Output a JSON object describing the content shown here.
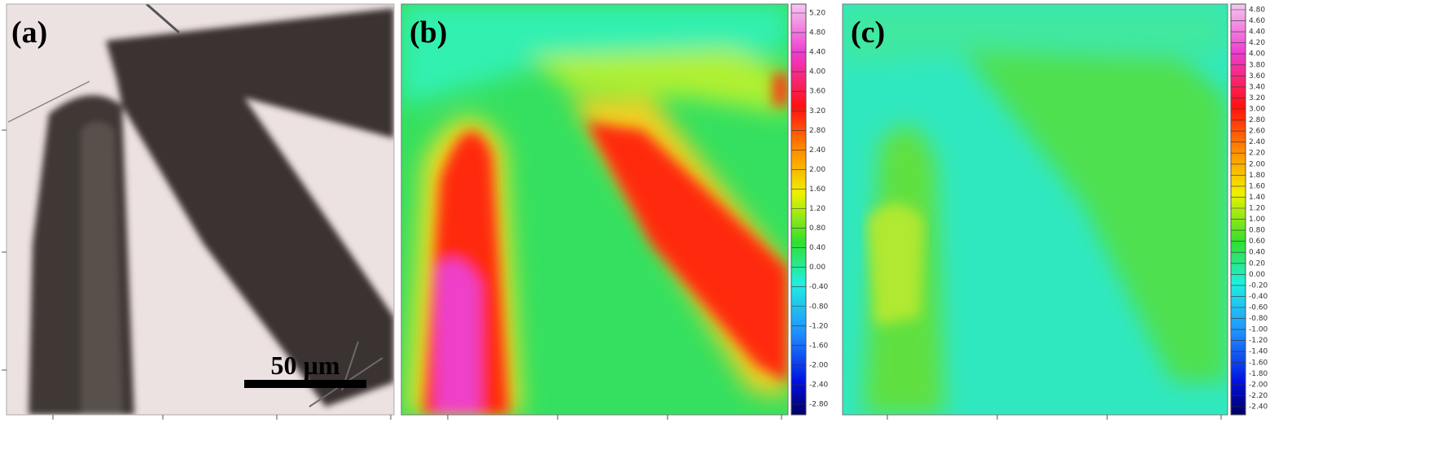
{
  "panels": [
    {
      "label": "(a)",
      "scale_bar": "50 µm"
    },
    {
      "label": "(b)",
      "colorbar": [
        "5.20",
        "4.80",
        "4.40",
        "4.00",
        "3.60",
        "3.20",
        "2.80",
        "2.40",
        "2.00",
        "1.60",
        "1.20",
        "0.80",
        "0.40",
        "0.00",
        "-0.40",
        "-0.80",
        "-1.20",
        "-1.60",
        "-2.00",
        "-2.40",
        "-2.80"
      ]
    },
    {
      "label": "(c)",
      "colorbar": [
        "4.80",
        "4.60",
        "4.40",
        "4.20",
        "4.00",
        "3.80",
        "3.60",
        "3.40",
        "3.20",
        "3.00",
        "2.80",
        "2.60",
        "2.40",
        "2.20",
        "2.00",
        "1.80",
        "1.60",
        "1.40",
        "1.20",
        "1.00",
        "0.80",
        "0.60",
        "0.40",
        "0.20",
        "0.00",
        "-0.20",
        "-0.40",
        "-0.60",
        "-0.80",
        "-1.00",
        "-1.20",
        "-1.40",
        "-1.60",
        "-1.80",
        "-2.00",
        "-2.20",
        "-2.40"
      ]
    }
  ]
}
